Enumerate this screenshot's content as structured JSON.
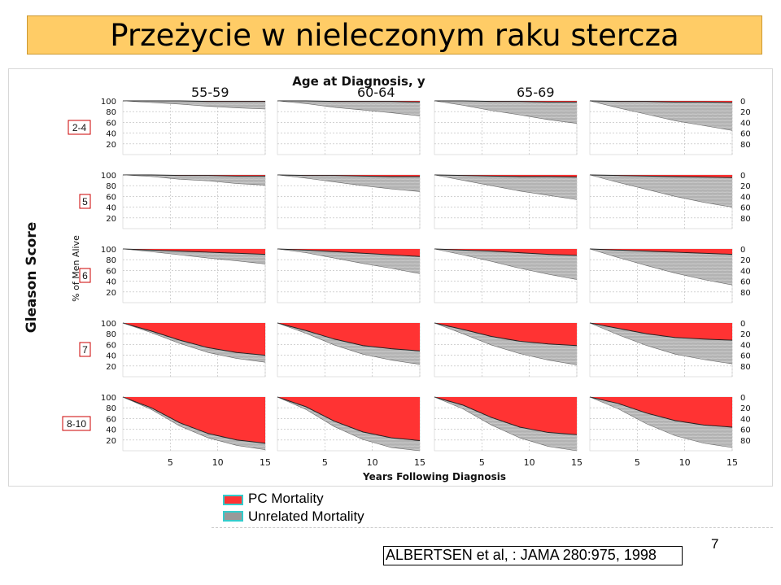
{
  "slide": {
    "title": "Przeżycie w nieleczonym raku stercza",
    "page_number": "7",
    "citation": "ALBERTSEN et al, : JAMA 280:975, 1998"
  },
  "colors": {
    "pc_mortality": "#ff3333",
    "unrelated_mortality": "#9a9a9a",
    "title_bg": "#ffcc66",
    "row_label_border": "#cc0000",
    "legend_swatch_border": "#33cccc"
  },
  "legend": {
    "items": [
      {
        "label": "PC Mortality",
        "color": "#ff3333"
      },
      {
        "label": "Unrelated Mortality",
        "color": "#999999"
      }
    ]
  },
  "chart_data": {
    "type": "area",
    "title": "Age at Diagnosis, y",
    "xlabel": "Years Following Diagnosis",
    "ylabel": "% of Men Alive",
    "y_right_label": "",
    "row_axis_title": "Gleason Score",
    "column_headers": [
      "55-59",
      "60-64",
      "65-69",
      "70-74"
    ],
    "row_labels": [
      "2-4",
      "5",
      "6",
      "7",
      "8-10"
    ],
    "x_ticks": [
      5,
      10,
      15
    ],
    "xlim": [
      0,
      15
    ],
    "y_left_ticks": [
      100,
      80,
      60,
      40,
      20
    ],
    "y_right_ticks": [
      0,
      20,
      40,
      60,
      80
    ],
    "ylim": [
      0,
      100
    ],
    "series": [
      {
        "name": "PC Mortality",
        "color": "#ff3333"
      },
      {
        "name": "Unrelated Mortality",
        "color": "#999999"
      }
    ],
    "x": [
      0,
      3,
      6,
      9,
      12,
      15
    ],
    "panels": [
      {
        "gleason": "2-4",
        "age": "55-59",
        "pc_cum": [
          0,
          0,
          0,
          1,
          1,
          1
        ],
        "alive": [
          100,
          97,
          94,
          91,
          88,
          86
        ]
      },
      {
        "gleason": "2-4",
        "age": "60-64",
        "pc_cum": [
          0,
          0,
          1,
          1,
          1,
          2
        ],
        "alive": [
          100,
          95,
          89,
          84,
          79,
          74
        ]
      },
      {
        "gleason": "2-4",
        "age": "65-69",
        "pc_cum": [
          0,
          0,
          1,
          1,
          2,
          2
        ],
        "alive": [
          100,
          92,
          83,
          75,
          67,
          60
        ]
      },
      {
        "gleason": "2-4",
        "age": "70-74",
        "pc_cum": [
          0,
          1,
          1,
          2,
          2,
          3
        ],
        "alive": [
          100,
          88,
          76,
          65,
          56,
          48
        ]
      },
      {
        "gleason": "5",
        "age": "55-59",
        "pc_cum": [
          0,
          0,
          1,
          1,
          2,
          2
        ],
        "alive": [
          100,
          97,
          93,
          90,
          86,
          83
        ]
      },
      {
        "gleason": "5",
        "age": "60-64",
        "pc_cum": [
          0,
          1,
          1,
          2,
          3,
          3
        ],
        "alive": [
          100,
          95,
          88,
          82,
          77,
          72
        ]
      },
      {
        "gleason": "5",
        "age": "65-69",
        "pc_cum": [
          0,
          1,
          2,
          3,
          3,
          4
        ],
        "alive": [
          100,
          91,
          82,
          73,
          65,
          58
        ]
      },
      {
        "gleason": "5",
        "age": "70-74",
        "pc_cum": [
          0,
          1,
          2,
          3,
          4,
          5
        ],
        "alive": [
          100,
          87,
          75,
          63,
          53,
          45
        ]
      },
      {
        "gleason": "6",
        "age": "55-59",
        "pc_cum": [
          0,
          2,
          4,
          6,
          8,
          10
        ],
        "alive": [
          100,
          97,
          93,
          89,
          86,
          82
        ]
      },
      {
        "gleason": "6",
        "age": "60-64",
        "pc_cum": [
          0,
          2,
          5,
          8,
          11,
          14
        ],
        "alive": [
          100,
          95,
          88,
          81,
          75,
          68
        ]
      },
      {
        "gleason": "6",
        "age": "65-69",
        "pc_cum": [
          0,
          2,
          4,
          7,
          10,
          12
        ],
        "alive": [
          100,
          91,
          81,
          71,
          63,
          55
        ]
      },
      {
        "gleason": "6",
        "age": "70-74",
        "pc_cum": [
          0,
          2,
          4,
          6,
          8,
          10
        ],
        "alive": [
          100,
          86,
          73,
          61,
          51,
          43
        ]
      },
      {
        "gleason": "7",
        "age": "55-59",
        "pc_cum": [
          0,
          15,
          32,
          46,
          55,
          60
        ],
        "alive": [
          100,
          97,
          94,
          91,
          89,
          87
        ]
      },
      {
        "gleason": "7",
        "age": "60-64",
        "pc_cum": [
          0,
          14,
          30,
          42,
          48,
          52
        ],
        "alive": [
          100,
          95,
          89,
          84,
          79,
          75
        ]
      },
      {
        "gleason": "7",
        "age": "65-69",
        "pc_cum": [
          0,
          12,
          25,
          34,
          39,
          42
        ],
        "alive": [
          100,
          92,
          84,
          77,
          70,
          64
        ]
      },
      {
        "gleason": "7",
        "age": "70-74",
        "pc_cum": [
          0,
          10,
          20,
          27,
          30,
          32
        ],
        "alive": [
          100,
          88,
          78,
          69,
          62,
          56
        ]
      },
      {
        "gleason": "8-10",
        "age": "55-59",
        "pc_cum": [
          0,
          20,
          48,
          68,
          80,
          86
        ],
        "alive": [
          100,
          97,
          94,
          92,
          90,
          88
        ]
      },
      {
        "gleason": "8-10",
        "age": "60-64",
        "pc_cum": [
          0,
          18,
          45,
          65,
          76,
          81
        ],
        "alive": [
          100,
          95,
          90,
          86,
          82,
          79
        ]
      },
      {
        "gleason": "8-10",
        "age": "65-69",
        "pc_cum": [
          0,
          15,
          38,
          56,
          66,
          70
        ],
        "alive": [
          100,
          93,
          86,
          80,
          74,
          70
        ]
      },
      {
        "gleason": "8-10",
        "age": "70-74",
        "pc_cum": [
          0,
          12,
          30,
          44,
          52,
          56
        ],
        "alive": [
          100,
          90,
          80,
          72,
          66,
          62
        ]
      }
    ]
  }
}
